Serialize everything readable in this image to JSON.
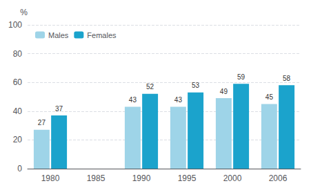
{
  "chart_data": {
    "type": "bar",
    "ylabel": "%",
    "categories": [
      "1980",
      "1985",
      "1990",
      "1995",
      "2000",
      "2006"
    ],
    "series": [
      {
        "name": "Males",
        "color": "#9ed4e8",
        "values": [
          27,
          null,
          43,
          43,
          49,
          45
        ]
      },
      {
        "name": "Females",
        "color": "#1ba3cc",
        "values": [
          37,
          null,
          52,
          53,
          59,
          58
        ]
      }
    ],
    "ylim": [
      0,
      100
    ],
    "yticks": [
      0,
      20,
      40,
      60,
      80,
      100
    ],
    "grid": true,
    "legend": "upper left",
    "data_labels": true
  }
}
